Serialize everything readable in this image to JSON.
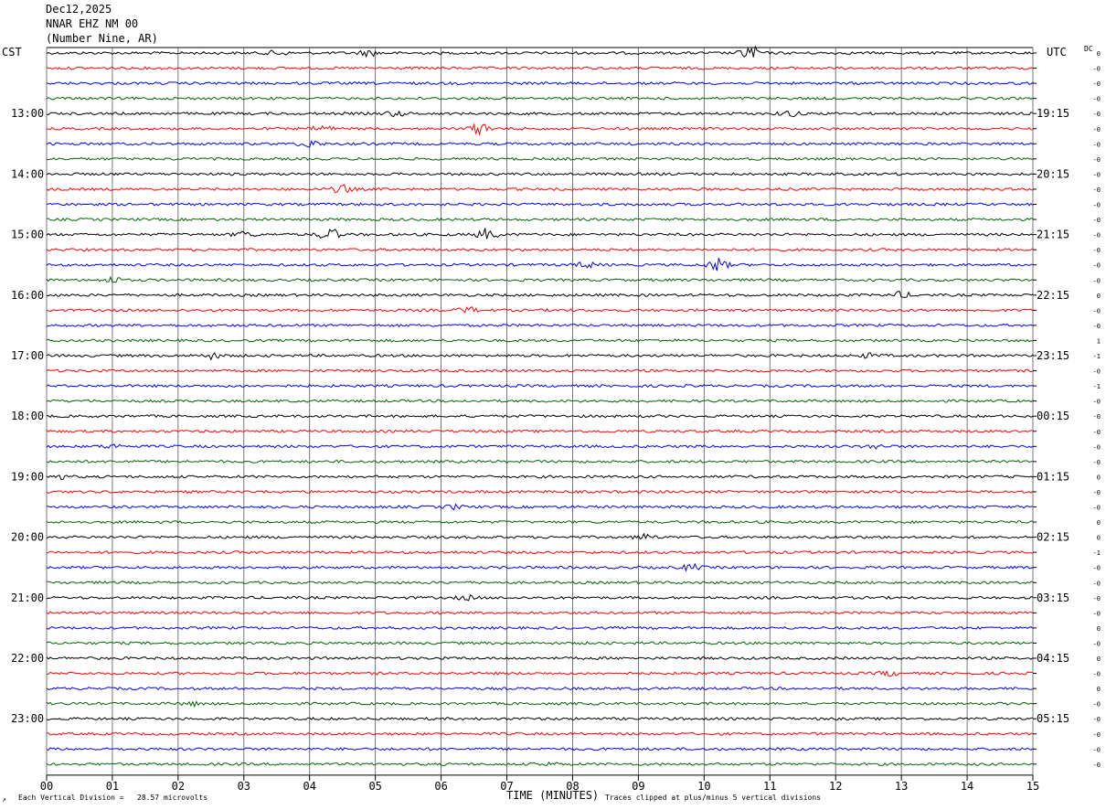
{
  "header": {
    "date": "Dec12,2025",
    "station": "NNAR EHZ NM 00",
    "location": "(Number Nine, AR)"
  },
  "left_zone": "CST",
  "right_zone": "UTC",
  "dc_label": "DC",
  "footer": {
    "xlabel": "TIME (MINUTES)",
    "scale_note": "Each Vertical Division =   28.57 microvolts",
    "clip_note": "Traces clipped at plus/minus 5 vertical divisions",
    "corner_mark": "↗"
  },
  "chart_data": {
    "type": "line",
    "title": "NNAR EHZ NM 00",
    "xlabel": "TIME (MINUTES)",
    "xlim": [
      0,
      15
    ],
    "x_ticks": [
      "00",
      "01",
      "02",
      "03",
      "04",
      "05",
      "06",
      "07",
      "08",
      "09",
      "10",
      "11",
      "12",
      "13",
      "14",
      "15"
    ],
    "trace_count": 48,
    "trace_colors": [
      "#000000",
      "#ff0000",
      "#0000ff",
      "#006400"
    ],
    "left_time_labels": [
      "13:00",
      "14:00",
      "15:00",
      "16:00",
      "17:00",
      "18:00",
      "19:00",
      "20:00",
      "21:00",
      "22:00",
      "23:00"
    ],
    "right_time_labels": [
      "19:15",
      "20:15",
      "21:15",
      "22:15",
      "23:15",
      "00:15",
      "01:15",
      "02:15",
      "03:15",
      "04:15",
      "05:15"
    ],
    "dc_offsets": [
      "0",
      "-0",
      "-0",
      "-0",
      "-0",
      "-0",
      "-0",
      "-0",
      "-0",
      "-0",
      "-0",
      "-0",
      "-0",
      "-0",
      "-0",
      "-0",
      "0",
      "-0",
      "-0",
      "1",
      "-1",
      "-0",
      "-1",
      "-0",
      "-0",
      "-0",
      "-0",
      "-0",
      "0",
      "-0",
      "-0",
      "0",
      "0",
      "-1",
      "-0",
      "-0",
      "-0",
      "-0",
      "0",
      "-0",
      "0",
      "-0",
      "0",
      "-0",
      "-0",
      "-0",
      "-0",
      "-0"
    ],
    "events": [
      {
        "trace": 0,
        "minute": 10.7,
        "amp": 8
      },
      {
        "trace": 0,
        "minute": 4.9,
        "amp": 3
      },
      {
        "trace": 0,
        "minute": 3.5,
        "amp": 2.5
      },
      {
        "trace": 4,
        "minute": 11.3,
        "amp": 3
      },
      {
        "trace": 4,
        "minute": 5.3,
        "amp": 2.5
      },
      {
        "trace": 5,
        "minute": 6.6,
        "amp": 6
      },
      {
        "trace": 5,
        "minute": 4.2,
        "amp": 3
      },
      {
        "trace": 6,
        "minute": 4.0,
        "amp": 4
      },
      {
        "trace": 9,
        "minute": 4.5,
        "amp": 4
      },
      {
        "trace": 12,
        "minute": 4.3,
        "amp": 7
      },
      {
        "trace": 12,
        "minute": 6.7,
        "amp": 6
      },
      {
        "trace": 12,
        "minute": 3.0,
        "amp": 3
      },
      {
        "trace": 14,
        "minute": 10.2,
        "amp": 7
      },
      {
        "trace": 14,
        "minute": 8.2,
        "amp": 3
      },
      {
        "trace": 15,
        "minute": 1.0,
        "amp": 3
      },
      {
        "trace": 16,
        "minute": 13.0,
        "amp": 3
      },
      {
        "trace": 17,
        "minute": 6.4,
        "amp": 3
      },
      {
        "trace": 20,
        "minute": 2.5,
        "amp": 3
      },
      {
        "trace": 20,
        "minute": 12.5,
        "amp": 2
      },
      {
        "trace": 26,
        "minute": 1.0,
        "amp": 2
      },
      {
        "trace": 26,
        "minute": 12.6,
        "amp": 2
      },
      {
        "trace": 28,
        "minute": 0.2,
        "amp": 2
      },
      {
        "trace": 30,
        "minute": 6.2,
        "amp": 2
      },
      {
        "trace": 32,
        "minute": 9.1,
        "amp": 3
      },
      {
        "trace": 34,
        "minute": 9.8,
        "amp": 3
      },
      {
        "trace": 36,
        "minute": 6.4,
        "amp": 2
      },
      {
        "trace": 41,
        "minute": 12.8,
        "amp": 2.5
      },
      {
        "trace": 43,
        "minute": 2.2,
        "amp": 2
      },
      {
        "trace": 47,
        "minute": 7.6,
        "amp": 1.5
      }
    ]
  }
}
